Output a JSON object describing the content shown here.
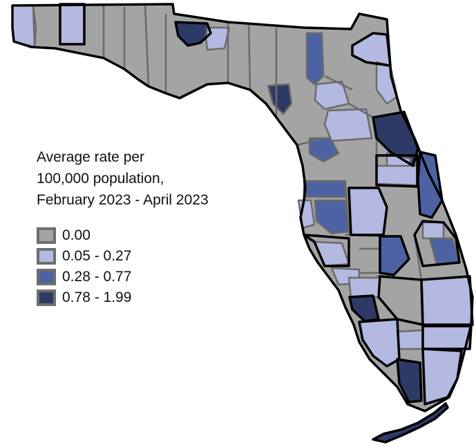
{
  "legend": {
    "title_lines": [
      "Average rate per",
      "100,000 population,",
      "February 2023 - April 2023"
    ],
    "items": [
      {
        "label": "0.00",
        "color": "#a4a4a4"
      },
      {
        "label": "0.05 - 0.27",
        "color": "#b3b9e0"
      },
      {
        "label": "0.28 - 0.77",
        "color": "#4d62a3"
      },
      {
        "label": "0.78 - 1.99",
        "color": "#2e3a66"
      }
    ]
  },
  "colors": {
    "county_border": "#6a6a6a",
    "region_border": "#000000",
    "background": "#ffffff"
  }
}
